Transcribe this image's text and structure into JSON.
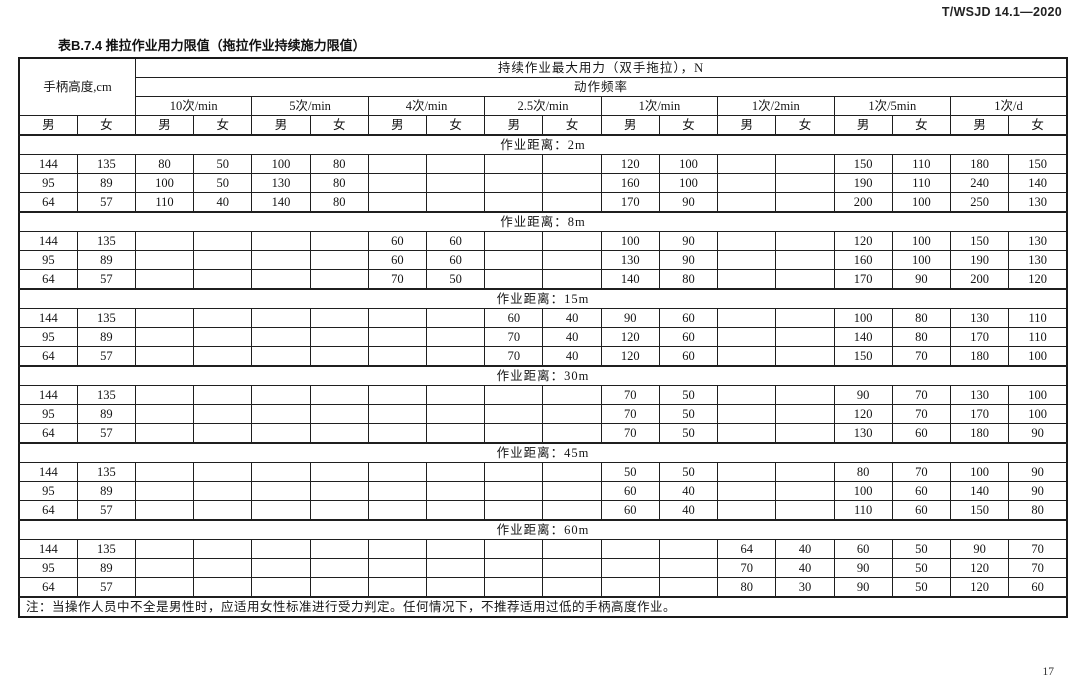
{
  "page": {
    "doc_number": "T/WSJD 14.1—2020",
    "page_number": "17"
  },
  "table": {
    "title": "表B.7.4 推拉作业用力限值（拖拉作业持续施力限值）",
    "header": {
      "handle_height": "手柄高度,cm",
      "max_force": "持续作业最大用力（双手拖拉），N",
      "frequency_label": "动作频率",
      "frequencies": [
        "10次/min",
        "5次/min",
        "4次/min",
        "2.5次/min",
        "1次/min",
        "1次/2min",
        "1次/5min",
        "1次/d"
      ],
      "male": "男",
      "female": "女"
    },
    "sections": [
      {
        "distance_label": "作业距离：2m",
        "rows": [
          [
            "144",
            "135",
            "80",
            "50",
            "100",
            "80",
            "",
            "",
            "",
            "",
            "120",
            "100",
            "",
            "",
            "150",
            "110",
            "180",
            "150"
          ],
          [
            "95",
            "89",
            "100",
            "50",
            "130",
            "80",
            "",
            "",
            "",
            "",
            "160",
            "100",
            "",
            "",
            "190",
            "110",
            "240",
            "140"
          ],
          [
            "64",
            "57",
            "110",
            "40",
            "140",
            "80",
            "",
            "",
            "",
            "",
            "170",
            "90",
            "",
            "",
            "200",
            "100",
            "250",
            "130"
          ]
        ]
      },
      {
        "distance_label": "作业距离：8m",
        "rows": [
          [
            "144",
            "135",
            "",
            "",
            "",
            "",
            "60",
            "60",
            "",
            "",
            "100",
            "90",
            "",
            "",
            "120",
            "100",
            "150",
            "130"
          ],
          [
            "95",
            "89",
            "",
            "",
            "",
            "",
            "60",
            "60",
            "",
            "",
            "130",
            "90",
            "",
            "",
            "160",
            "100",
            "190",
            "130"
          ],
          [
            "64",
            "57",
            "",
            "",
            "",
            "",
            "70",
            "50",
            "",
            "",
            "140",
            "80",
            "",
            "",
            "170",
            "90",
            "200",
            "120"
          ]
        ]
      },
      {
        "distance_label": "作业距离：15m",
        "rows": [
          [
            "144",
            "135",
            "",
            "",
            "",
            "",
            "",
            "",
            "60",
            "40",
            "90",
            "60",
            "",
            "",
            "100",
            "80",
            "130",
            "110"
          ],
          [
            "95",
            "89",
            "",
            "",
            "",
            "",
            "",
            "",
            "70",
            "40",
            "120",
            "60",
            "",
            "",
            "140",
            "80",
            "170",
            "110"
          ],
          [
            "64",
            "57",
            "",
            "",
            "",
            "",
            "",
            "",
            "70",
            "40",
            "120",
            "60",
            "",
            "",
            "150",
            "70",
            "180",
            "100"
          ]
        ]
      },
      {
        "distance_label": "作业距离：30m",
        "rows": [
          [
            "144",
            "135",
            "",
            "",
            "",
            "",
            "",
            "",
            "",
            "",
            "70",
            "50",
            "",
            "",
            "90",
            "70",
            "130",
            "100"
          ],
          [
            "95",
            "89",
            "",
            "",
            "",
            "",
            "",
            "",
            "",
            "",
            "70",
            "50",
            "",
            "",
            "120",
            "70",
            "170",
            "100"
          ],
          [
            "64",
            "57",
            "",
            "",
            "",
            "",
            "",
            "",
            "",
            "",
            "70",
            "50",
            "",
            "",
            "130",
            "60",
            "180",
            "90"
          ]
        ]
      },
      {
        "distance_label": "作业距离：45m",
        "rows": [
          [
            "144",
            "135",
            "",
            "",
            "",
            "",
            "",
            "",
            "",
            "",
            "50",
            "50",
            "",
            "",
            "80",
            "70",
            "100",
            "90"
          ],
          [
            "95",
            "89",
            "",
            "",
            "",
            "",
            "",
            "",
            "",
            "",
            "60",
            "40",
            "",
            "",
            "100",
            "60",
            "140",
            "90"
          ],
          [
            "64",
            "57",
            "",
            "",
            "",
            "",
            "",
            "",
            "",
            "",
            "60",
            "40",
            "",
            "",
            "110",
            "60",
            "150",
            "80"
          ]
        ]
      },
      {
        "distance_label": "作业距离：60m",
        "rows": [
          [
            "144",
            "135",
            "",
            "",
            "",
            "",
            "",
            "",
            "",
            "",
            "",
            "",
            "64",
            "40",
            "60",
            "50",
            "90",
            "70"
          ],
          [
            "95",
            "89",
            "",
            "",
            "",
            "",
            "",
            "",
            "",
            "",
            "",
            "",
            "70",
            "40",
            "90",
            "50",
            "120",
            "70"
          ],
          [
            "64",
            "57",
            "",
            "",
            "",
            "",
            "",
            "",
            "",
            "",
            "",
            "",
            "80",
            "30",
            "90",
            "50",
            "120",
            "60"
          ]
        ]
      }
    ],
    "note": "注：当操作人员中不全是男性时，应适用女性标准进行受力判定。任何情况下，不推荐适用过低的手柄高度作业。"
  }
}
